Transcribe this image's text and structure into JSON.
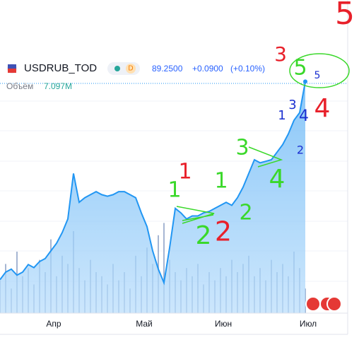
{
  "chart_data": {
    "type": "area",
    "symbol": "USDRUB_TOD",
    "interval": "D",
    "last_price": "89.2500",
    "change": "+0.0900",
    "change_percent": "(+0.10%)",
    "volume_label": "Объём",
    "volume_value": "7.097M",
    "categories": [
      null,
      null,
      null,
      null,
      null,
      null,
      null,
      null,
      null,
      "Апр",
      null,
      null,
      null,
      null,
      null,
      null,
      null,
      null,
      null,
      null,
      null,
      null,
      null,
      null,
      null,
      "Май",
      null,
      null,
      null,
      null,
      null,
      null,
      null,
      null,
      null,
      null,
      null,
      null,
      null,
      "Июн",
      null,
      null,
      null,
      null,
      null,
      null,
      null,
      null,
      null,
      null,
      null,
      null,
      null,
      null,
      "Июл"
    ],
    "series": [
      {
        "name": "USDRUB_TOD",
        "color": "#2196f3",
        "values": [
          76.2,
          76.7,
          76.9,
          76.5,
          76.7,
          77.2,
          77.0,
          77.4,
          77.6,
          78.1,
          78.6,
          79.3,
          80.2,
          83.2,
          81.3,
          81.6,
          81.8,
          82.0,
          81.8,
          81.7,
          81.8,
          82.0,
          82.0,
          81.8,
          81.6,
          80.6,
          79.7,
          78.1,
          76.9,
          76.0,
          78.3,
          80.9,
          80.6,
          80.2,
          80.4,
          80.4,
          80.6,
          80.7,
          80.9,
          81.1,
          81.3,
          81.1,
          81.6,
          82.3,
          83.2,
          84.1,
          83.9,
          84.0,
          84.1,
          84.6,
          85.1,
          85.8,
          86.7,
          87.2,
          89.25
        ]
      },
      {
        "name": "Объём",
        "color": "#90a4c8",
        "values": [
          8,
          12,
          6,
          15,
          9,
          11,
          7,
          13,
          10,
          18,
          9,
          14,
          12,
          20,
          11,
          8,
          13,
          10,
          9,
          7,
          12,
          8,
          10,
          6,
          14,
          9,
          16,
          12,
          19,
          22,
          13,
          10,
          8,
          11,
          9,
          12,
          7,
          10,
          8,
          11,
          9,
          13,
          10,
          12,
          14,
          9,
          11,
          8,
          13,
          10,
          12,
          9,
          15,
          11,
          6
        ]
      }
    ],
    "ylim": [
      74,
      90.2
    ],
    "vlim": [
      0,
      60
    ],
    "annotations": [
      {
        "text": "5",
        "color": "#e8202a"
      },
      {
        "text": "3",
        "color": "#e8202a"
      },
      {
        "text": "5",
        "color": "#3ad82a"
      },
      {
        "text": "5",
        "color": "#1a2fd0"
      },
      {
        "text": "4",
        "color": "#e8202a"
      },
      {
        "text": "1",
        "color": "#1a2fd0"
      },
      {
        "text": "3",
        "color": "#1a2fd0"
      },
      {
        "text": "4",
        "color": "#1a2fd0"
      },
      {
        "text": "2",
        "color": "#1a2fd0"
      },
      {
        "text": "3",
        "color": "#3ad82a"
      },
      {
        "text": "4",
        "color": "#3ad82a"
      },
      {
        "text": "1",
        "color": "#e8202a"
      },
      {
        "text": "1",
        "color": "#3ad82a"
      },
      {
        "text": "1",
        "color": "#3ad82a"
      },
      {
        "text": "2",
        "color": "#3ad82a"
      },
      {
        "text": "2",
        "color": "#3ad82a"
      },
      {
        "text": "2",
        "color": "#e8202a"
      }
    ]
  }
}
